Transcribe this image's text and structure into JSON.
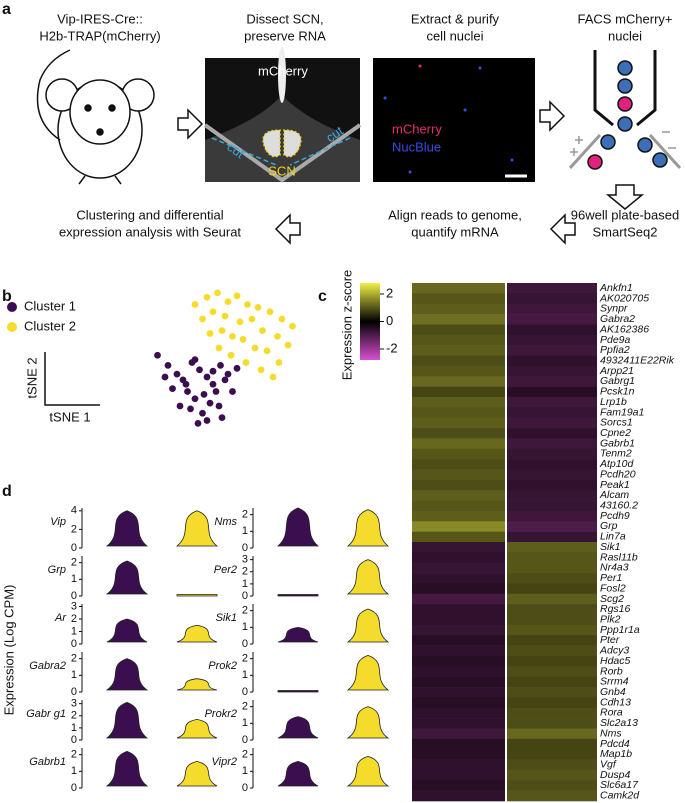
{
  "panel_a": {
    "label": "a",
    "steps": [
      [
        "Vip-IRES-Cre::",
        "H2b-TRAP(mCherry)"
      ],
      [
        "Dissect SCN,",
        "preserve RNA"
      ],
      [
        "Extract & purify",
        "cell nuclei"
      ],
      [
        "FACS mCherry+",
        "nuclei"
      ],
      [
        "96well plate-based",
        "SmartSeq2"
      ],
      [
        "Align reads to genome,",
        "quantify mRNA"
      ],
      [
        "Clustering and differential",
        "expression analysis with Seurat"
      ]
    ],
    "image_labels": {
      "scn_stain": "mCherry",
      "cut_left": "cut",
      "cut_right": "cut",
      "scn": "SCN",
      "nuc_red": "mCherry",
      "nuc_blue": "NucBlue"
    }
  },
  "panel_b": {
    "label": "b",
    "type": "scatter",
    "x_label": "tSNE 1",
    "y_label": "tSNE 2",
    "series": [
      {
        "name": "Cluster 1",
        "color": "#3b0f4f",
        "x": [
          5,
          12,
          18,
          22,
          28,
          33,
          38,
          42,
          47,
          52,
          15,
          25,
          30,
          36,
          44,
          50,
          20,
          27,
          35,
          40,
          46,
          55,
          10,
          32,
          38,
          48,
          24,
          42,
          58,
          30
        ],
        "y": [
          55,
          48,
          42,
          38,
          50,
          45,
          40,
          35,
          48,
          42,
          32,
          30,
          25,
          28,
          30,
          38,
          20,
          18,
          15,
          22,
          20,
          30,
          40,
          8,
          10,
          12,
          35,
          44,
          46,
          52
        ]
      },
      {
        "name": "Cluster 2",
        "color": "#f5dc2c",
        "x": [
          30,
          38,
          45,
          52,
          58,
          65,
          72,
          80,
          88,
          95,
          35,
          42,
          50,
          60,
          68,
          75,
          85,
          92,
          40,
          48,
          55,
          62,
          70,
          78,
          86,
          46,
          54,
          64,
          74,
          82
        ],
        "y": [
          90,
          95,
          98,
          92,
          96,
          90,
          88,
          85,
          80,
          75,
          80,
          85,
          82,
          78,
          80,
          72,
          68,
          62,
          70,
          72,
          68,
          66,
          60,
          58,
          50,
          60,
          55,
          50,
          45,
          40
        ]
      }
    ]
  },
  "panel_c": {
    "label": "c",
    "type": "heatmap",
    "colorbar_label": "Expression z-score",
    "clim": [
      -2.8,
      2.8
    ],
    "cticks": [
      2,
      0,
      -2
    ],
    "columns": [
      "Cluster 1",
      "Cluster 2"
    ],
    "genes": [
      "Ankfn1",
      "AK020705",
      "Synpr",
      "Gabra2",
      "AK162386",
      "Pde9a",
      "Ppfia2",
      "4932411E22Rik",
      "Arpp21",
      "Gabrg1",
      "Pcsk1n",
      "Lrp1b",
      "Fam19a1",
      "Sorcs1",
      "Cpne2",
      "Gabrb1",
      "Tenm2",
      "Atp10d",
      "Pcdh20",
      "Peak1",
      "Alcam",
      "43160.2",
      "Pcdh9",
      "Grp",
      "Lin7a",
      "Sik1",
      "Rasl11b",
      "Nr4a3",
      "Per1",
      "Fosl2",
      "Scg2",
      "Rgs16",
      "Plk2",
      "Ppp1r1a",
      "Pter",
      "Adcy3",
      "Hdac5",
      "Rorb",
      "Srrm4",
      "Gnb4",
      "Cdh13",
      "Rora",
      "Slc2a13",
      "Nms",
      "Pdcd4",
      "Map1b",
      "Vgf",
      "Dusp4",
      "Slc6a17",
      "Camk2d"
    ],
    "values": [
      [
        1.2,
        -0.8
      ],
      [
        1.0,
        -0.7
      ],
      [
        1.1,
        -0.8
      ],
      [
        1.3,
        -0.9
      ],
      [
        0.9,
        -0.6
      ],
      [
        1.0,
        -0.7
      ],
      [
        1.1,
        -0.8
      ],
      [
        0.9,
        -0.6
      ],
      [
        1.0,
        -0.7
      ],
      [
        1.2,
        -0.8
      ],
      [
        0.8,
        -0.5
      ],
      [
        1.1,
        -0.8
      ],
      [
        1.0,
        -0.7
      ],
      [
        1.1,
        -0.8
      ],
      [
        0.9,
        -0.6
      ],
      [
        1.2,
        -0.8
      ],
      [
        1.0,
        -0.7
      ],
      [
        0.9,
        -0.6
      ],
      [
        1.0,
        -0.7
      ],
      [
        0.9,
        -0.6
      ],
      [
        1.1,
        -0.7
      ],
      [
        1.0,
        -0.7
      ],
      [
        1.1,
        -0.8
      ],
      [
        1.6,
        -1.0
      ],
      [
        1.0,
        -0.7
      ],
      [
        -0.7,
        1.1
      ],
      [
        -0.6,
        1.0
      ],
      [
        -0.7,
        1.0
      ],
      [
        -0.6,
        0.9
      ],
      [
        -0.5,
        0.8
      ],
      [
        -0.9,
        1.1
      ],
      [
        -0.6,
        0.9
      ],
      [
        -0.6,
        0.9
      ],
      [
        -0.7,
        1.0
      ],
      [
        -0.5,
        0.8
      ],
      [
        -0.6,
        0.9
      ],
      [
        -0.5,
        0.8
      ],
      [
        -0.6,
        0.9
      ],
      [
        -0.5,
        0.8
      ],
      [
        -0.6,
        0.9
      ],
      [
        -0.5,
        0.8
      ],
      [
        -0.6,
        0.9
      ],
      [
        -0.6,
        0.9
      ],
      [
        -0.8,
        1.2
      ],
      [
        -0.5,
        0.8
      ],
      [
        -0.5,
        0.8
      ],
      [
        -0.6,
        0.9
      ],
      [
        -0.6,
        1.0
      ],
      [
        -0.5,
        0.9
      ],
      [
        -0.6,
        1.0
      ]
    ]
  },
  "panel_d": {
    "label": "d",
    "type": "violin",
    "y_label": "Expression (Log CPM)",
    "colors": [
      "#3b0f4f",
      "#f5dc2c"
    ],
    "genes": [
      {
        "name": "Vip",
        "ylim": [
          0,
          4.3
        ],
        "yticks": [
          0,
          2,
          4
        ],
        "values": [
          4,
          4
        ]
      },
      {
        "name": "Grp",
        "ylim": [
          0,
          2.4
        ],
        "yticks": [
          0,
          1,
          2
        ],
        "values": [
          2.1,
          0.1
        ]
      },
      {
        "name": "Ar",
        "ylim": [
          0,
          3.2
        ],
        "yticks": [
          0,
          1,
          2,
          3
        ],
        "values": [
          2,
          1.5
        ]
      },
      {
        "name": "Gabra2",
        "ylim": [
          0,
          2.4
        ],
        "yticks": [
          0,
          1,
          2
        ],
        "values": [
          2,
          0.8
        ]
      },
      {
        "name": "Gabr g1",
        "ylim": [
          0,
          3.3
        ],
        "yticks": [
          0,
          1,
          2,
          3
        ],
        "values": [
          3.1,
          1.7
        ]
      },
      {
        "name": "Gabrb1",
        "ylim": [
          0,
          2.4
        ],
        "yticks": [
          0,
          1,
          2
        ],
        "values": [
          2.2,
          1.6
        ]
      },
      {
        "name": "Nms",
        "ylim": [
          0,
          2.4
        ],
        "yticks": [
          0,
          1,
          2
        ],
        "values": [
          2.4,
          2.3
        ]
      },
      {
        "name": "Per2",
        "ylim": [
          0,
          3.3
        ],
        "yticks": [
          0,
          1,
          2,
          3
        ],
        "values": [
          0.3,
          3
        ]
      },
      {
        "name": "Sik1",
        "ylim": [
          0,
          2.4
        ],
        "yticks": [
          0,
          1,
          2
        ],
        "values": [
          1,
          2.1
        ]
      },
      {
        "name": "Prok2",
        "ylim": [
          0,
          2.4
        ],
        "yticks": [
          0,
          1,
          2
        ],
        "values": [
          0.2,
          2.2
        ]
      },
      {
        "name": "Prokr2",
        "ylim": [
          0,
          2.4
        ],
        "yticks": [
          0,
          1,
          2
        ],
        "values": [
          1.4,
          2
        ]
      },
      {
        "name": "Vipr2",
        "ylim": [
          0,
          2.4
        ],
        "yticks": [
          0,
          1,
          2
        ],
        "values": [
          1.6,
          1.9
        ]
      }
    ]
  }
}
